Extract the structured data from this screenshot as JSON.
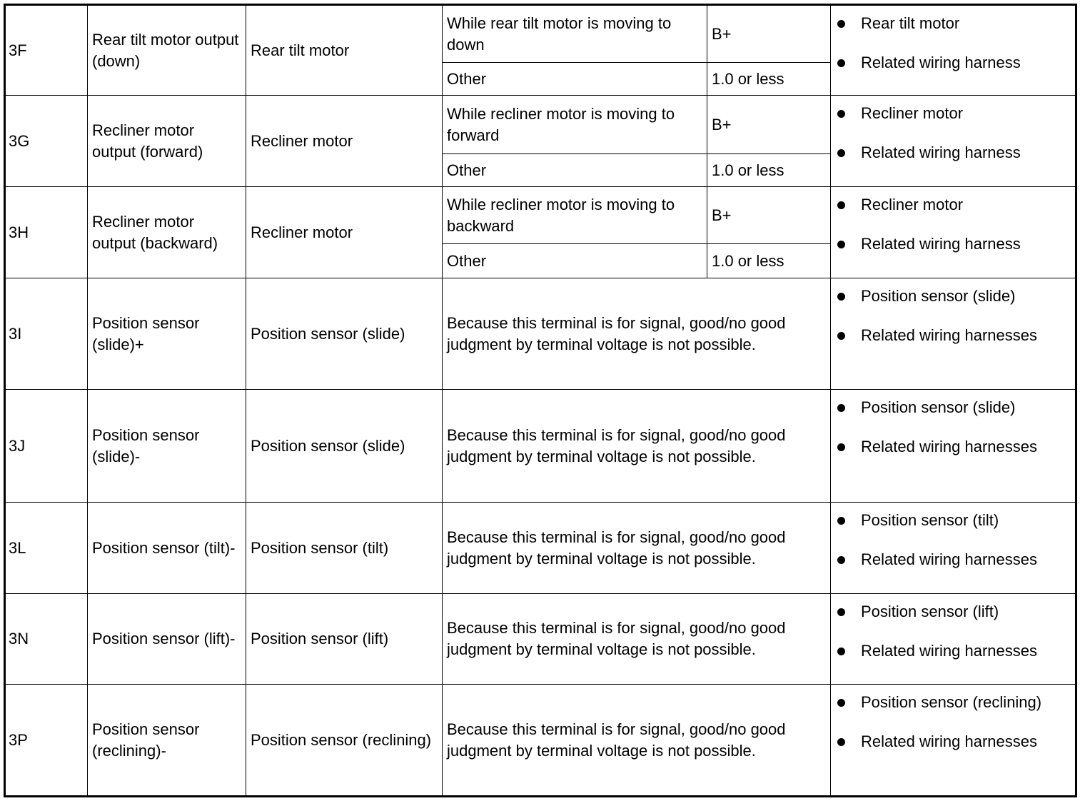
{
  "rows": [
    {
      "terminal": "3F",
      "description": "Rear tilt motor output (down)",
      "connected": "Rear tilt motor",
      "conditions": [
        {
          "condition": "While rear tilt motor is moving to down",
          "value": "B+"
        },
        {
          "condition": "Other",
          "value": "1.0 or less"
        }
      ],
      "parts": [
        "Rear tilt motor",
        "Related wiring harness"
      ]
    },
    {
      "terminal": "3G",
      "description": "Recliner motor output (forward)",
      "connected": "Recliner motor",
      "conditions": [
        {
          "condition": "While recliner motor is moving to forward",
          "value": "B+"
        },
        {
          "condition": "Other",
          "value": "1.0 or less"
        }
      ],
      "parts": [
        "Recliner motor",
        "Related wiring harness"
      ]
    },
    {
      "terminal": "3H",
      "description": "Recliner motor output (backward)",
      "connected": "Recliner motor",
      "conditions": [
        {
          "condition": "While recliner motor is moving to backward",
          "value": "B+"
        },
        {
          "condition": "Other",
          "value": "1.0 or less"
        }
      ],
      "parts": [
        "Recliner motor",
        "Related wiring harness"
      ]
    },
    {
      "terminal": "3I",
      "description": "Position sensor (slide)+",
      "connected": "Position sensor (slide)",
      "note": "Because this terminal is for signal, good/no good judgment by terminal voltage is not possible.",
      "parts": [
        "Position sensor (slide)",
        "Related wiring harnesses"
      ]
    },
    {
      "terminal": "3J",
      "description": "Position sensor (slide)-",
      "connected": "Position sensor (slide)",
      "note": "Because this terminal is for signal, good/no good judgment by terminal voltage is not possible.",
      "parts": [
        "Position sensor (slide)",
        "Related wiring harnesses"
      ]
    },
    {
      "terminal": "3L",
      "description": "Position sensor (tilt)-",
      "connected": "Position sensor (tilt)",
      "note": "Because this terminal is for signal, good/no good judgment by terminal voltage is not possible.",
      "parts": [
        "Position sensor (tilt)",
        "Related wiring harnesses"
      ]
    },
    {
      "terminal": "3N",
      "description": "Position sensor (lift)-",
      "connected": "Position sensor (lift)",
      "note": "Because this terminal is for signal, good/no good judgment by terminal voltage is not possible.",
      "parts": [
        "Position sensor (lift)",
        "Related wiring harnesses"
      ]
    },
    {
      "terminal": "3P",
      "description": "Position sensor (reclining)-",
      "connected": "Position sensor (reclining)",
      "note": "Because this terminal is for signal, good/no good judgment by terminal voltage is not possible.",
      "parts": [
        "Position sensor (reclining)",
        "Related wiring harnesses"
      ]
    }
  ]
}
